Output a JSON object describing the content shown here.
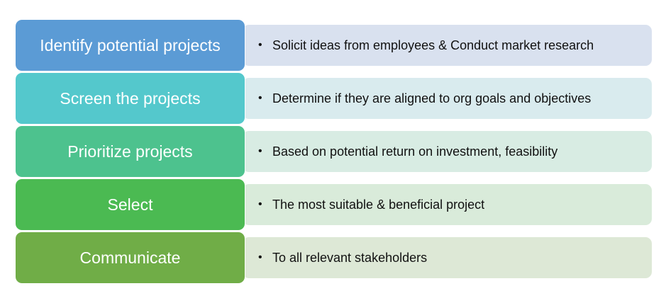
{
  "steps": [
    {
      "label": "Identify potential projects",
      "detail": "Solicit ideas from employees & Conduct market research",
      "step_color": "#5b9bd5",
      "detail_color": "#d9e1ef"
    },
    {
      "label": "Screen the projects",
      "detail": "Determine if they are aligned to org goals and objectives",
      "step_color": "#54c8cc",
      "detail_color": "#d9ebee"
    },
    {
      "label": "Prioritize projects",
      "detail": "Based on potential return on investment, feasibility",
      "step_color": "#4dc28e",
      "detail_color": "#d8ece3"
    },
    {
      "label": "Select",
      "detail": "The most suitable & beneficial project",
      "step_color": "#4bba52",
      "detail_color": "#d9ebda"
    },
    {
      "label": "Communicate",
      "detail": "To all relevant stakeholders",
      "step_color": "#70ad47",
      "detail_color": "#dde8d6"
    }
  ],
  "bullet_symbol": "•"
}
